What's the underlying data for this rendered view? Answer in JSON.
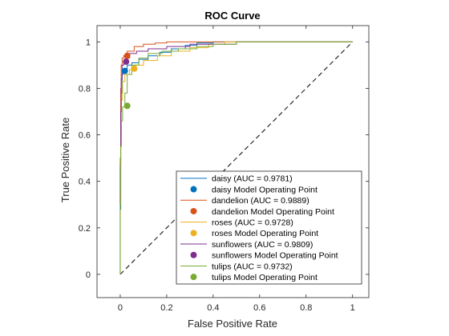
{
  "chart_data": {
    "type": "line",
    "title": "ROC Curve",
    "xlabel": "False Positive Rate",
    "ylabel": "True Positive Rate",
    "xlim": [
      -0.1,
      1.07
    ],
    "ylim": [
      -0.1,
      1.07
    ],
    "x_ticks": [
      "0",
      "0.2",
      "0.4",
      "0.6",
      "0.8",
      "1"
    ],
    "y_ticks": [
      "0",
      "0.2",
      "0.4",
      "0.6",
      "0.8",
      "1"
    ],
    "grid": false,
    "legend_position": "bottom-right",
    "diagonal": {
      "x": [
        0,
        1
      ],
      "y": [
        0,
        1
      ],
      "style": "dashed",
      "color": "#000000"
    },
    "series": [
      {
        "name": "daisy (AUC = 0.9781)",
        "color": "#0072BD",
        "x": [
          0,
          0.002,
          0.004,
          0.008,
          0.012,
          0.02,
          0.03,
          0.05,
          0.08,
          0.12,
          0.17,
          0.22,
          0.28,
          0.33,
          0.4,
          0.5,
          0.6,
          0.8,
          1
        ],
        "y": [
          0,
          0.28,
          0.62,
          0.78,
          0.86,
          0.875,
          0.885,
          0.9,
          0.91,
          0.925,
          0.94,
          0.955,
          0.97,
          0.985,
          0.995,
          1,
          1,
          1,
          1
        ]
      },
      {
        "name": "dandelion (AUC = 0.9889)",
        "color": "#D95319",
        "x": [
          0,
          0.002,
          0.004,
          0.008,
          0.015,
          0.03,
          0.06,
          0.1,
          0.15,
          0.2,
          0.25,
          0.35,
          0.5,
          0.7,
          1
        ],
        "y": [
          0,
          0.5,
          0.8,
          0.9,
          0.93,
          0.94,
          0.96,
          0.98,
          0.99,
          0.995,
          1,
          1,
          1,
          1,
          1
        ]
      },
      {
        "name": "roses (AUC = 0.9728)",
        "color": "#EDB120",
        "x": [
          0,
          0.002,
          0.005,
          0.01,
          0.02,
          0.04,
          0.06,
          0.1,
          0.16,
          0.22,
          0.3,
          0.38,
          0.45,
          0.58,
          0.75,
          1
        ],
        "y": [
          0,
          0.35,
          0.6,
          0.75,
          0.83,
          0.86,
          0.88,
          0.9,
          0.92,
          0.94,
          0.96,
          0.975,
          0.99,
          1,
          1,
          1
        ]
      },
      {
        "name": "sunflowers (AUC = 0.9809)",
        "color": "#7E2F8E",
        "x": [
          0,
          0.002,
          0.004,
          0.008,
          0.015,
          0.025,
          0.04,
          0.07,
          0.12,
          0.2,
          0.3,
          0.4,
          0.5,
          0.6,
          0.8,
          1
        ],
        "y": [
          0,
          0.47,
          0.7,
          0.84,
          0.9,
          0.915,
          0.93,
          0.95,
          0.96,
          0.97,
          0.98,
          0.99,
          0.99,
          1,
          1,
          1
        ]
      },
      {
        "name": "tulips (AUC = 0.9732)",
        "color": "#77AC30",
        "x": [
          0,
          0.002,
          0.005,
          0.01,
          0.02,
          0.03,
          0.05,
          0.08,
          0.12,
          0.18,
          0.25,
          0.33,
          0.4,
          0.5,
          0.6,
          0.8,
          1
        ],
        "y": [
          0,
          0.3,
          0.55,
          0.66,
          0.72,
          0.78,
          0.86,
          0.9,
          0.93,
          0.95,
          0.96,
          0.97,
          0.98,
          0.99,
          1,
          1,
          1
        ]
      }
    ],
    "operating_points": [
      {
        "name": "daisy Model Operating Point",
        "color": "#0072BD",
        "x": 0.02,
        "y": 0.875
      },
      {
        "name": "dandelion Model Operating Point",
        "color": "#D95319",
        "x": 0.03,
        "y": 0.94
      },
      {
        "name": "roses Model Operating Point",
        "color": "#EDB120",
        "x": 0.06,
        "y": 0.885
      },
      {
        "name": "sunflowers Model Operating Point",
        "color": "#7E2F8E",
        "x": 0.025,
        "y": 0.915
      },
      {
        "name": "tulips Model Operating Point",
        "color": "#77AC30",
        "x": 0.03,
        "y": 0.725
      }
    ]
  }
}
